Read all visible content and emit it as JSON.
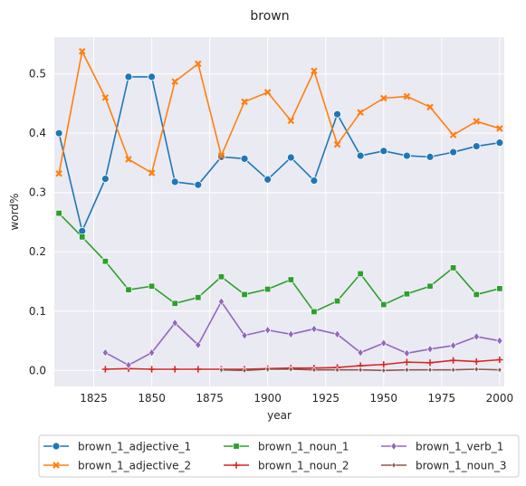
{
  "chart_data": {
    "type": "line",
    "title": "brown",
    "xlabel": "year",
    "ylabel": "word%",
    "xlim": [
      1808,
      2002
    ],
    "ylim": [
      -0.027,
      0.562
    ],
    "x_ticks": [
      1825,
      1850,
      1875,
      1900,
      1925,
      1950,
      1975,
      2000
    ],
    "y_ticks": [
      0.0,
      0.1,
      0.2,
      0.3,
      0.4,
      0.5
    ],
    "y_tick_labels": [
      "0.0",
      "0.1",
      "0.2",
      "0.3",
      "0.4",
      "0.5"
    ],
    "grid": true,
    "legend_position": "bottom",
    "series": [
      {
        "name": "brown_1_adjective_1",
        "color": "#1f77b4",
        "marker": "circle",
        "x": [
          1810,
          1820,
          1830,
          1840,
          1850,
          1860,
          1870,
          1880,
          1890,
          1900,
          1910,
          1920,
          1930,
          1940,
          1950,
          1960,
          1970,
          1980,
          1990,
          2000
        ],
        "y": [
          0.4,
          0.235,
          0.323,
          0.495,
          0.495,
          0.318,
          0.313,
          0.36,
          0.357,
          0.322,
          0.359,
          0.32,
          0.432,
          0.362,
          0.37,
          0.362,
          0.36,
          0.368,
          0.378,
          0.384
        ]
      },
      {
        "name": "brown_1_adjective_2",
        "color": "#ff7f0e",
        "marker": "x",
        "x": [
          1810,
          1820,
          1830,
          1840,
          1850,
          1860,
          1870,
          1880,
          1890,
          1900,
          1910,
          1920,
          1930,
          1940,
          1950,
          1960,
          1970,
          1980,
          1990,
          2000
        ],
        "y": [
          0.332,
          0.538,
          0.46,
          0.356,
          0.333,
          0.487,
          0.517,
          0.362,
          0.453,
          0.469,
          0.421,
          0.505,
          0.381,
          0.435,
          0.459,
          0.462,
          0.444,
          0.397,
          0.42,
          0.408
        ]
      },
      {
        "name": "brown_1_noun_1",
        "color": "#2ca02c",
        "marker": "square",
        "x": [
          1810,
          1820,
          1830,
          1840,
          1850,
          1860,
          1870,
          1880,
          1890,
          1900,
          1910,
          1920,
          1930,
          1940,
          1950,
          1960,
          1970,
          1980,
          1990,
          2000
        ],
        "y": [
          0.265,
          0.225,
          0.184,
          0.136,
          0.142,
          0.113,
          0.123,
          0.158,
          0.128,
          0.137,
          0.153,
          0.099,
          0.117,
          0.163,
          0.111,
          0.129,
          0.142,
          0.173,
          0.128,
          0.138
        ]
      },
      {
        "name": "brown_1_noun_2",
        "color": "#d62728",
        "marker": "plus",
        "x": [
          1830,
          1840,
          1850,
          1860,
          1870,
          1880,
          1890,
          1900,
          1910,
          1920,
          1930,
          1940,
          1950,
          1960,
          1970,
          1980,
          1990,
          2000
        ],
        "y": [
          0.002,
          0.003,
          0.002,
          0.002,
          0.002,
          0.002,
          0.002,
          0.003,
          0.004,
          0.004,
          0.005,
          0.008,
          0.01,
          0.014,
          0.013,
          0.017,
          0.015,
          0.018
        ]
      },
      {
        "name": "brown_1_verb_1",
        "color": "#9467bd",
        "marker": "diamond",
        "x": [
          1830,
          1840,
          1850,
          1860,
          1870,
          1880,
          1890,
          1900,
          1910,
          1920,
          1930,
          1940,
          1950,
          1960,
          1970,
          1980,
          1990,
          2000
        ],
        "y": [
          0.03,
          0.009,
          0.03,
          0.08,
          0.043,
          0.116,
          0.059,
          0.068,
          0.061,
          0.07,
          0.061,
          0.03,
          0.046,
          0.029,
          0.036,
          0.042,
          0.057,
          0.05
        ]
      },
      {
        "name": "brown_1_noun_3",
        "color": "#8c564b",
        "marker": "small-diamond",
        "x": [
          1880,
          1890,
          1900,
          1910,
          1920,
          1930,
          1940,
          1950,
          1960,
          1970,
          1980,
          1990,
          2000
        ],
        "y": [
          0.001,
          0.0,
          0.002,
          0.002,
          0.001,
          0.001,
          0.001,
          0.0,
          0.001,
          0.001,
          0.001,
          0.002,
          0.001
        ]
      }
    ]
  }
}
